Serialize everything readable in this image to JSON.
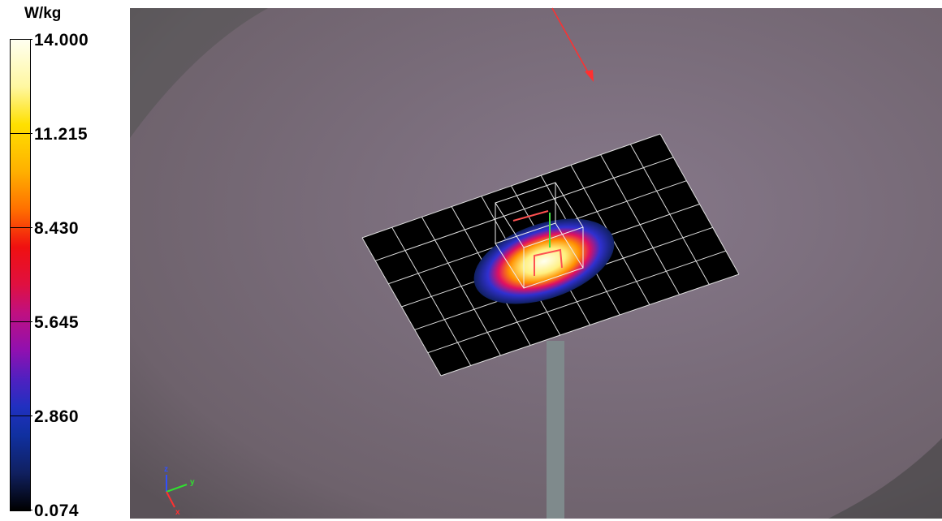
{
  "colorbar": {
    "unit": "W/kg",
    "labels": [
      "14.000",
      "11.215",
      "8.430",
      "5.645",
      "2.860",
      "0.074"
    ]
  },
  "axes": {
    "z": "z",
    "y": "y",
    "x": "x"
  }
}
